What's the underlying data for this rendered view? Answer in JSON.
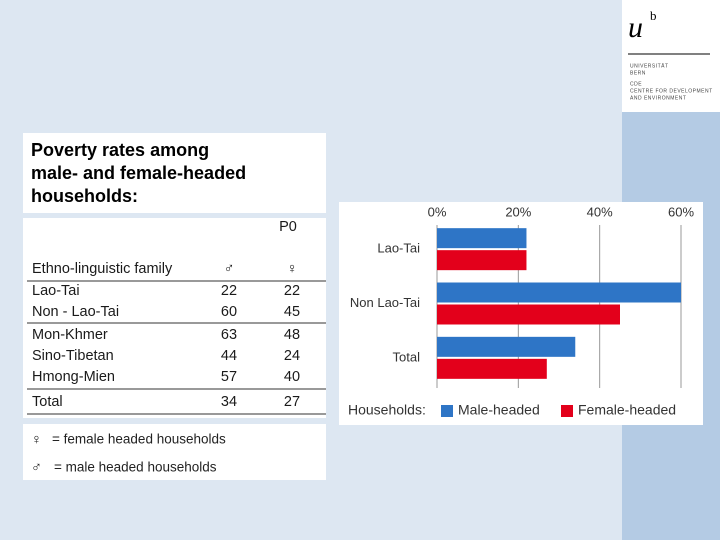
{
  "logo": {
    "mark": "u",
    "superscript": "b",
    "lines": [
      "UNIVERSITÄT",
      "BERN",
      "CDE",
      "CENTRE FOR DEVELOPMENT",
      "AND ENVIRONMENT"
    ]
  },
  "slide_title": [
    "Poverty rates among",
    "male- and female-headed",
    "households:"
  ],
  "table": {
    "header": "P0",
    "columns": [
      "Ethno-linguistic family",
      "♂",
      "♀"
    ],
    "rows": [
      [
        "Lao-Tai",
        22,
        22
      ],
      [
        "Non - Lao-Tai",
        60,
        45
      ],
      [
        "Mon-Khmer",
        63,
        48
      ],
      [
        "Sino-Tibetan",
        44,
        24
      ],
      [
        "Hmong-Mien",
        57,
        40
      ],
      [
        "Total",
        34,
        27
      ]
    ]
  },
  "notes": [
    {
      "symbol": "♀",
      "text": "= female headed households"
    },
    {
      "symbol": "♂",
      "text": "= male headed households"
    }
  ],
  "chart_data": {
    "type": "hbar",
    "categories": [
      "Lao-Tai",
      "Non Lao-Tai",
      "Total"
    ],
    "series": [
      {
        "name": "Male-headed",
        "color": "#2e75c6",
        "values": [
          22,
          60,
          34
        ]
      },
      {
        "name": "Female-headed",
        "color": "#e3001b",
        "values": [
          22,
          45,
          27
        ]
      }
    ],
    "xlim": [
      0,
      60
    ],
    "xticks": [
      {
        "value": 0,
        "label": "0%"
      },
      {
        "value": 20,
        "label": "20%"
      },
      {
        "value": 40,
        "label": "40%"
      },
      {
        "value": 60,
        "label": "60%"
      }
    ],
    "grid": true,
    "legend": "bottom",
    "legend_title": "Households:"
  }
}
